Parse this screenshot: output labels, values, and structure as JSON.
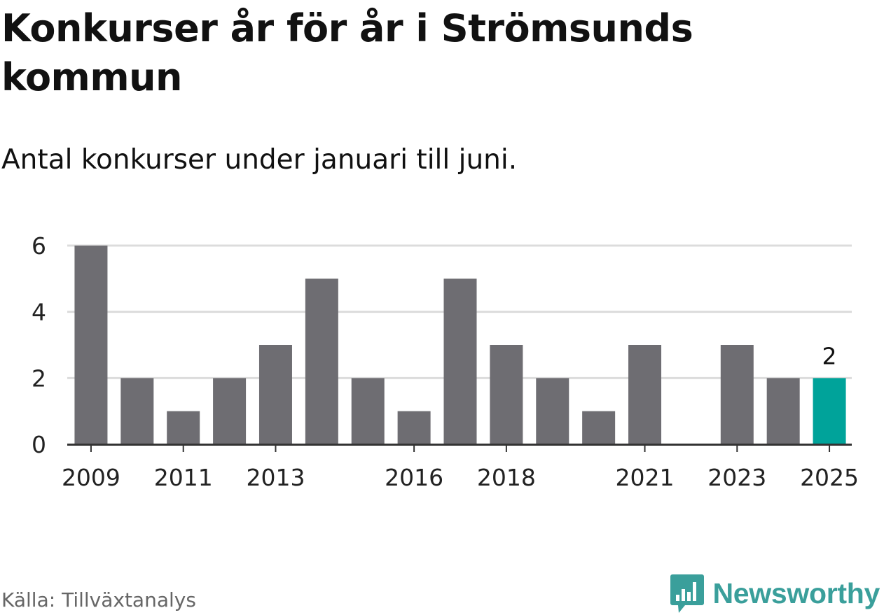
{
  "title": "Konkurser år för år i Strömsunds kommun",
  "subtitle": "Antal konkurser under januari till juni.",
  "source": "Källa: Tillväxtanalys",
  "brand": {
    "name": "Newsworthy",
    "icon": "newsworthy-logo-icon",
    "color": "#3a9f9b"
  },
  "colors": {
    "bar": "#6e6d72",
    "highlight": "#00a39a",
    "grid": "#dcdcdc",
    "axis": "#333333",
    "text": "#222222"
  },
  "chart_data": {
    "type": "bar",
    "title": "Konkurser år för år i Strömsunds kommun",
    "subtitle": "Antal konkurser under januari till juni.",
    "categories": [
      "2009",
      "2010",
      "2011",
      "2012",
      "2013",
      "2014",
      "2015",
      "2016",
      "2017",
      "2018",
      "2019",
      "2020",
      "2021",
      "2022",
      "2023",
      "2024",
      "2025"
    ],
    "values": [
      6,
      2,
      1,
      2,
      3,
      5,
      2,
      1,
      5,
      3,
      2,
      1,
      3,
      0,
      3,
      2,
      2
    ],
    "x_tick_labels": [
      "2009",
      "2011",
      "2013",
      "2016",
      "2018",
      "2021",
      "2023",
      "2025"
    ],
    "y_ticks": [
      0,
      2,
      4,
      6
    ],
    "ylim": [
      0,
      6
    ],
    "xlabel": "",
    "ylabel": "",
    "highlight": {
      "category": "2025",
      "label": "2"
    },
    "grid": true
  }
}
